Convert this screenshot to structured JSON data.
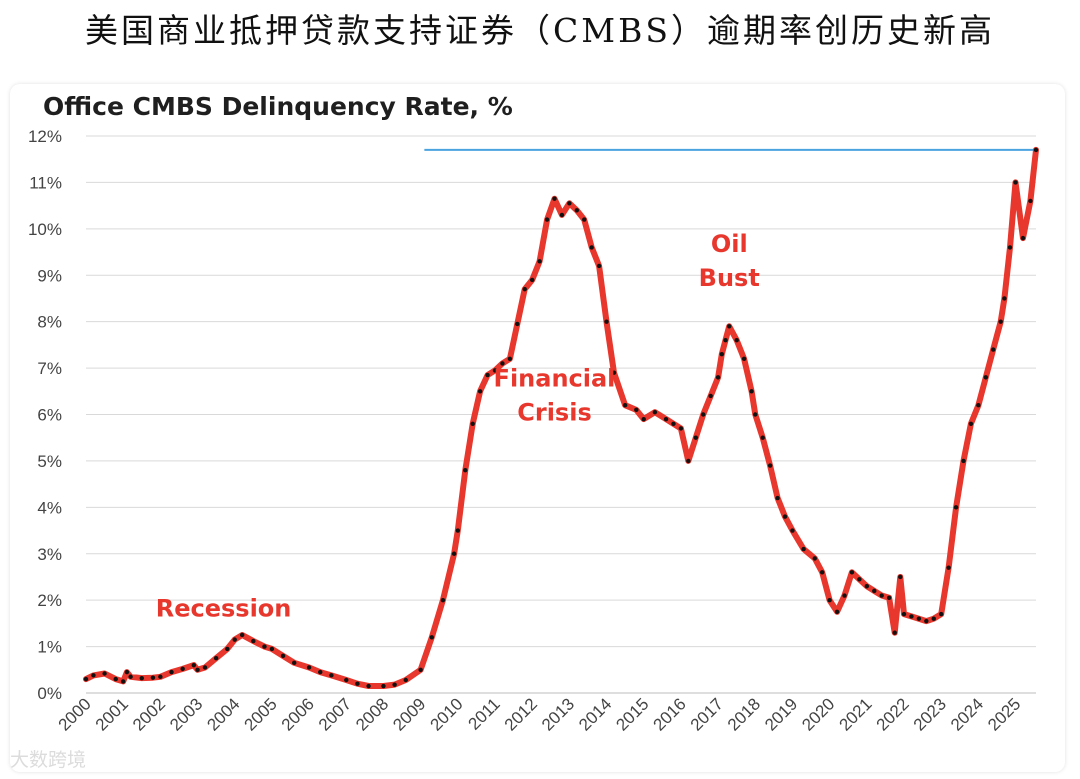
{
  "page": {
    "title": "美国商业抵押贷款支持证券（CMBS）逾期率创历史新高",
    "watermark": "大数跨境"
  },
  "chart_data": {
    "type": "line",
    "title": "Office CMBS Delinquency Rate, %",
    "xlabel": "",
    "ylabel": "",
    "ylim": [
      0,
      12
    ],
    "xlim": [
      2000.0,
      2025.55
    ],
    "y_ticks": [
      "0%",
      "1%",
      "2%",
      "3%",
      "4%",
      "5%",
      "6%",
      "7%",
      "8%",
      "9%",
      "10%",
      "11%",
      "12%"
    ],
    "x_ticks": [
      "2000",
      "2001",
      "2002",
      "2003",
      "2004",
      "2005",
      "2006",
      "2007",
      "2008",
      "2009",
      "2010",
      "2011",
      "2012",
      "2013",
      "2014",
      "2015",
      "2016",
      "2017",
      "2018",
      "2019",
      "2020",
      "2021",
      "2022",
      "2023",
      "2024",
      "2025"
    ],
    "grid": true,
    "series": [
      {
        "name": "",
        "color": "#e8372d",
        "marker_color": "#111111",
        "x": [
          2000.0,
          2000.2,
          2000.5,
          2000.8,
          2001.0,
          2001.1,
          2001.2,
          2001.5,
          2001.8,
          2002.0,
          2002.3,
          2002.6,
          2002.9,
          2003.0,
          2003.2,
          2003.5,
          2003.8,
          2004.0,
          2004.2,
          2004.5,
          2004.8,
          2005.0,
          2005.3,
          2005.6,
          2006.0,
          2006.3,
          2006.6,
          2007.0,
          2007.3,
          2007.6,
          2008.0,
          2008.3,
          2008.6,
          2009.0,
          2009.3,
          2009.6,
          2009.9,
          2010.0,
          2010.2,
          2010.4,
          2010.6,
          2010.8,
          2011.0,
          2011.2,
          2011.4,
          2011.6,
          2011.8,
          2012.0,
          2012.2,
          2012.4,
          2012.6,
          2012.8,
          2013.0,
          2013.2,
          2013.4,
          2013.6,
          2013.8,
          2014.0,
          2014.2,
          2014.5,
          2014.8,
          2015.0,
          2015.3,
          2015.6,
          2015.8,
          2016.0,
          2016.2,
          2016.4,
          2016.6,
          2016.8,
          2017.0,
          2017.1,
          2017.2,
          2017.3,
          2017.5,
          2017.7,
          2017.9,
          2018.0,
          2018.2,
          2018.4,
          2018.6,
          2018.8,
          2019.0,
          2019.3,
          2019.6,
          2019.8,
          2020.0,
          2020.2,
          2020.4,
          2020.6,
          2020.8,
          2021.0,
          2021.2,
          2021.4,
          2021.6,
          2021.75,
          2021.9,
          2022.0,
          2022.2,
          2022.4,
          2022.6,
          2022.8,
          2023.0,
          2023.2,
          2023.4,
          2023.6,
          2023.8,
          2024.0,
          2024.2,
          2024.4,
          2024.6,
          2024.7,
          2024.85,
          2025.0,
          2025.2,
          2025.4,
          2025.55
        ],
        "values": [
          0.3,
          0.38,
          0.42,
          0.3,
          0.25,
          0.45,
          0.35,
          0.32,
          0.33,
          0.35,
          0.45,
          0.52,
          0.6,
          0.5,
          0.55,
          0.75,
          0.95,
          1.15,
          1.25,
          1.12,
          1.0,
          0.95,
          0.8,
          0.65,
          0.55,
          0.45,
          0.38,
          0.28,
          0.2,
          0.15,
          0.15,
          0.18,
          0.28,
          0.5,
          1.2,
          2.0,
          3.0,
          3.5,
          4.8,
          5.8,
          6.5,
          6.85,
          6.95,
          7.1,
          7.2,
          7.95,
          8.7,
          8.9,
          9.3,
          10.2,
          10.65,
          10.3,
          10.55,
          10.4,
          10.2,
          9.6,
          9.2,
          8.0,
          6.9,
          6.2,
          6.1,
          5.9,
          6.05,
          5.9,
          5.8,
          5.7,
          5.0,
          5.5,
          6.0,
          6.4,
          6.8,
          7.3,
          7.6,
          7.9,
          7.6,
          7.2,
          6.5,
          6.0,
          5.5,
          4.9,
          4.2,
          3.8,
          3.5,
          3.1,
          2.9,
          2.6,
          2.0,
          1.75,
          2.1,
          2.6,
          2.45,
          2.3,
          2.2,
          2.1,
          2.05,
          1.3,
          2.5,
          1.7,
          1.65,
          1.6,
          1.55,
          1.6,
          1.7,
          2.7,
          4.0,
          5.0,
          5.8,
          6.2,
          6.8,
          7.4,
          8.0,
          8.5,
          9.6,
          11.0,
          9.8,
          10.6,
          11.7
        ]
      }
    ],
    "reference_line": {
      "y": 11.7,
      "x_start": 2009.1,
      "x_end": 2025.55,
      "color": "#4aa3df"
    },
    "annotations": [
      {
        "lines": [
          "Recession"
        ],
        "x": 2003.7,
        "y": 1.65,
        "color": "#e8372d"
      },
      {
        "lines": [
          "Financial",
          "Crisis"
        ],
        "x": 2012.6,
        "y": 6.6,
        "color": "#e8372d"
      },
      {
        "lines": [
          "Oil",
          "Bust"
        ],
        "x": 2017.3,
        "y": 9.5,
        "color": "#e8372d"
      }
    ]
  }
}
